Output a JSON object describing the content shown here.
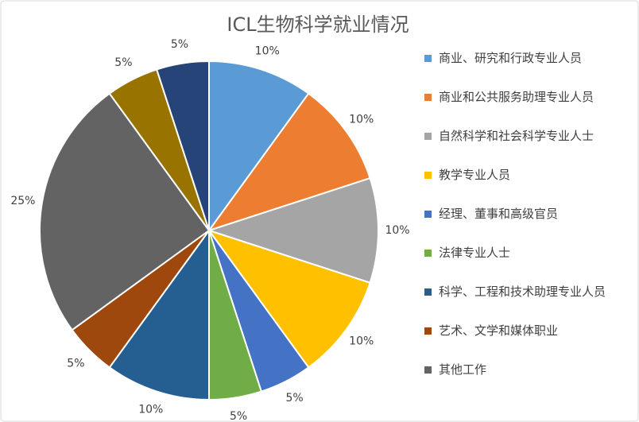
{
  "chart_data": {
    "type": "pie",
    "title": "ICL生物科学就业情况",
    "categories": [
      "商业、研究和行政专业人员",
      "商业和公共服务助理专业人员",
      "自然科学和社会科学专业人士",
      "教学专业人员",
      "经理、董事和高级官员",
      "法律专业人士",
      "科学、工程和技术助理专业人员",
      "艺术、文学和媒体职业",
      "其他工作",
      null,
      null
    ],
    "values": [
      10,
      10,
      10,
      10,
      5,
      5,
      10,
      5,
      25,
      5,
      5
    ],
    "value_labels": [
      "10%",
      "10%",
      "10%",
      "10%",
      "5%",
      "5%",
      "10%",
      "5%",
      "25%",
      "5%",
      "5%"
    ],
    "colors": [
      "#5b9bd5",
      "#ed7d31",
      "#a5a5a5",
      "#ffc000",
      "#4472c4",
      "#70ad47",
      "#255e91",
      "#9e480e",
      "#636363",
      "#997300",
      "#264478"
    ],
    "legend": "right"
  }
}
